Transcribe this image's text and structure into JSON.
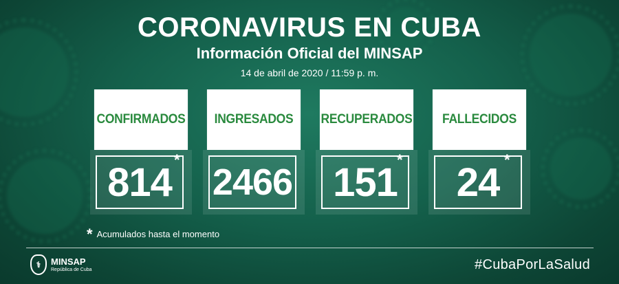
{
  "header": {
    "title": "CORONAVIRUS EN CUBA",
    "subtitle": "Información Oficial del MINSAP",
    "date": "14 de abril de 2020 / 11:59 p. m."
  },
  "cards": [
    {
      "label": "CONFIRMADOS",
      "value": "814",
      "marker": "*"
    },
    {
      "label": "INGRESADOS",
      "value": "2466",
      "marker": ""
    },
    {
      "label": "RECUPERADOS",
      "value": "151",
      "marker": "*"
    },
    {
      "label": "FALLECIDOS",
      "value": "24",
      "marker": "*"
    }
  ],
  "footnote": {
    "marker": "*",
    "text": "Acumulados hasta el momento"
  },
  "logo": {
    "name": "MINSAP",
    "sub": "República de Cuba"
  },
  "hashtag": "#CubaPorLaSalud",
  "colors": {
    "background": "#14604b",
    "accent_green": "#2a8a3e",
    "text": "#ffffff"
  }
}
